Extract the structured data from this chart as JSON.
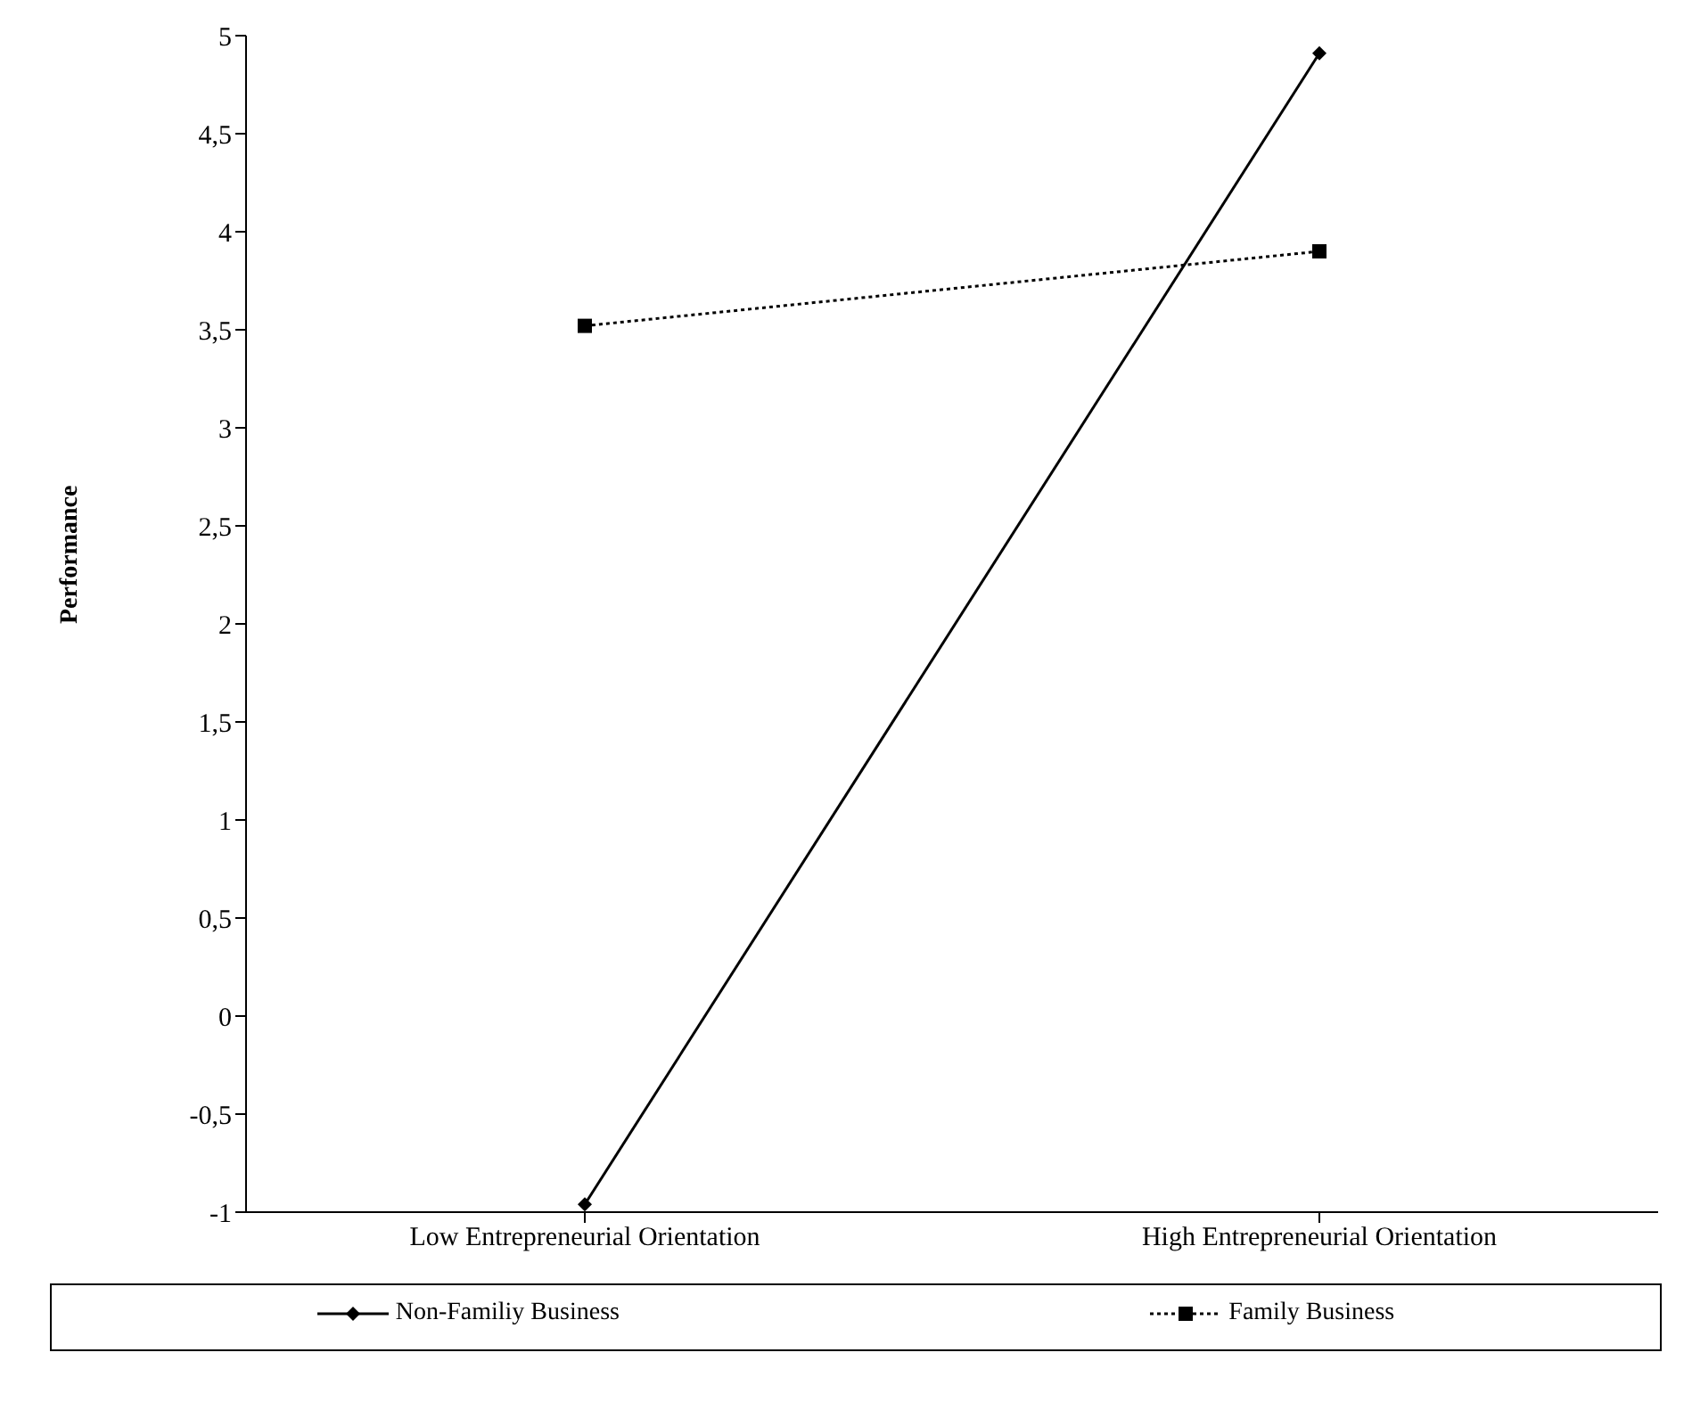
{
  "chart_data": {
    "type": "line",
    "ylabel": "Performance",
    "categories": [
      "Low Entrepreneurial Orientation",
      "High Entrepreneurial Orientation"
    ],
    "series": [
      {
        "name": "Non-Familiy Business",
        "color": "#000000",
        "values": [
          -0.96,
          4.91
        ],
        "marker": "diamond",
        "line_style": "solid"
      },
      {
        "name": "Family Business",
        "color": "#000000",
        "values": [
          3.52,
          3.9
        ],
        "marker": "square",
        "line_style": "dotted"
      }
    ],
    "ylim": [
      -1,
      5
    ],
    "yticks": [
      {
        "value": -1,
        "label": "-1"
      },
      {
        "value": -0.5,
        "label": "-0,5"
      },
      {
        "value": 0,
        "label": "0"
      },
      {
        "value": 0.5,
        "label": "0,5"
      },
      {
        "value": 1,
        "label": "1"
      },
      {
        "value": 1.5,
        "label": "1,5"
      },
      {
        "value": 2,
        "label": "2"
      },
      {
        "value": 2.5,
        "label": "2,5"
      },
      {
        "value": 3,
        "label": "3"
      },
      {
        "value": 3.5,
        "label": "3,5"
      },
      {
        "value": 4,
        "label": "4"
      },
      {
        "value": 4.5,
        "label": "4,5"
      },
      {
        "value": 5,
        "label": "5"
      }
    ],
    "grid": false,
    "legend": "bottom"
  }
}
